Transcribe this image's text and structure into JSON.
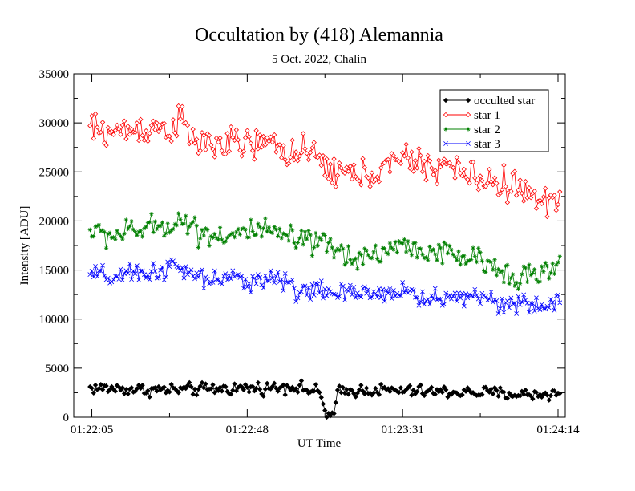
{
  "chart_data": {
    "type": "line",
    "title": "Occultation by (418) Alemannia",
    "subtitle": "5 Oct. 2022, Chalin",
    "xlabel": "UT Time",
    "ylabel": "Intensity [ADU]",
    "x_unit": "seconds after 01:22:00 UT",
    "xlim": [
      0,
      136
    ],
    "ylim": [
      0,
      35000
    ],
    "x_ticks": [
      {
        "value": 5,
        "label": "01:22:05"
      },
      {
        "value": 48,
        "label": "01:22:48"
      },
      {
        "value": 91,
        "label": "01:23:31"
      },
      {
        "value": 134,
        "label": "01:24:14"
      }
    ],
    "y_ticks": [
      0,
      5000,
      10000,
      15000,
      20000,
      25000,
      30000,
      35000
    ],
    "grid": false,
    "legend_position": "top-right",
    "sample_interval_s": 0.5,
    "x_start": 4.5,
    "x_end": 134.5,
    "series": [
      {
        "name": "occulted star",
        "color": "#000000",
        "marker": "diamond-filled",
        "trend": [
          [
            4.5,
            3000
          ],
          [
            20,
            2800
          ],
          [
            30,
            2800
          ],
          [
            40,
            2900
          ],
          [
            55,
            3000
          ],
          [
            60,
            3200
          ],
          [
            68,
            2500
          ],
          [
            70,
            200
          ],
          [
            72,
            200
          ],
          [
            73,
            2500
          ],
          [
            80,
            2800
          ],
          [
            100,
            2600
          ],
          [
            115,
            2500
          ],
          [
            125,
            2300
          ],
          [
            134.5,
            2400
          ]
        ],
        "noise": 420
      },
      {
        "name": "star 1",
        "color": "#ff0000",
        "marker": "diamond-open",
        "trend": [
          [
            4.5,
            29500
          ],
          [
            10,
            29000
          ],
          [
            20,
            29500
          ],
          [
            27,
            29500
          ],
          [
            30,
            30200
          ],
          [
            33,
            28000
          ],
          [
            40,
            27800
          ],
          [
            50,
            27800
          ],
          [
            55,
            27800
          ],
          [
            60,
            27000
          ],
          [
            67,
            26500
          ],
          [
            72,
            25000
          ],
          [
            80,
            24600
          ],
          [
            87,
            25500
          ],
          [
            93,
            26500
          ],
          [
            97,
            25500
          ],
          [
            103,
            25700
          ],
          [
            110,
            24500
          ],
          [
            116,
            24000
          ],
          [
            123,
            23500
          ],
          [
            130,
            21500
          ],
          [
            134.5,
            23000
          ]
        ],
        "noise": 1100
      },
      {
        "name": "star 2",
        "color": "#008000",
        "marker": "star",
        "trend": [
          [
            4.5,
            19000
          ],
          [
            10,
            18500
          ],
          [
            20,
            19200
          ],
          [
            28,
            19800
          ],
          [
            30,
            20200
          ],
          [
            35,
            18800
          ],
          [
            43,
            18500
          ],
          [
            50,
            19000
          ],
          [
            58,
            18500
          ],
          [
            63,
            17800
          ],
          [
            70,
            17500
          ],
          [
            75,
            16500
          ],
          [
            82,
            16400
          ],
          [
            90,
            17500
          ],
          [
            97,
            17000
          ],
          [
            104,
            16500
          ],
          [
            110,
            16200
          ],
          [
            118,
            15000
          ],
          [
            127,
            14300
          ],
          [
            134.5,
            15200
          ]
        ],
        "noise": 850
      },
      {
        "name": "star 3",
        "color": "#0000ff",
        "marker": "cross",
        "trend": [
          [
            4.5,
            14500
          ],
          [
            12,
            14200
          ],
          [
            20,
            14700
          ],
          [
            28,
            15300
          ],
          [
            34,
            14200
          ],
          [
            40,
            14000
          ],
          [
            50,
            14000
          ],
          [
            56,
            14200
          ],
          [
            62,
            13000
          ],
          [
            70,
            12800
          ],
          [
            75,
            12500
          ],
          [
            80,
            12500
          ],
          [
            85,
            12800
          ],
          [
            92,
            12800
          ],
          [
            95,
            12200
          ],
          [
            102,
            12000
          ],
          [
            110,
            12500
          ],
          [
            118,
            11800
          ],
          [
            128,
            11200
          ],
          [
            134.5,
            11800
          ]
        ],
        "noise": 700
      }
    ]
  }
}
